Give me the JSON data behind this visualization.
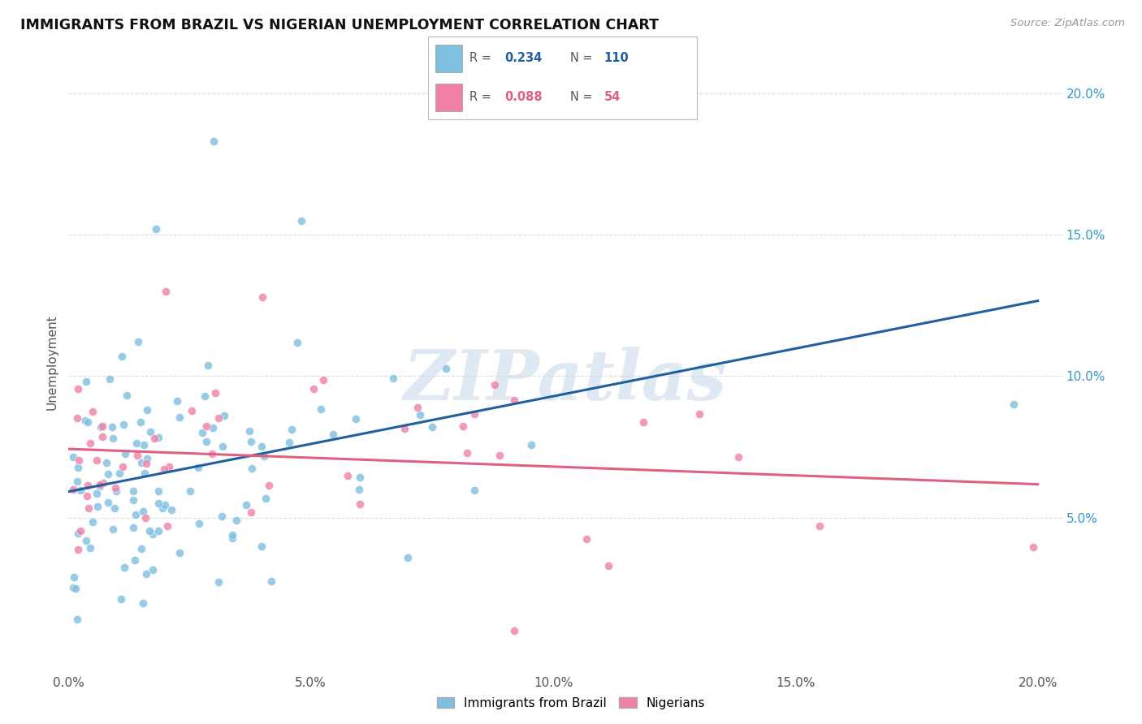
{
  "title": "IMMIGRANTS FROM BRAZIL VS NIGERIAN UNEMPLOYMENT CORRELATION CHART",
  "source": "Source: ZipAtlas.com",
  "ylabel": "Unemployment",
  "legend_label_blue": "Immigrants from Brazil",
  "legend_label_pink": "Nigerians",
  "watermark_text": "ZIPatlas",
  "blue_color": "#7fbfdf",
  "pink_color": "#f080a8",
  "blue_line_color": "#2060a0",
  "pink_line_color": "#e06080",
  "xlim": [
    0.0,
    0.205
  ],
  "ylim": [
    -0.005,
    0.215
  ],
  "ytick_vals": [
    0.05,
    0.1,
    0.15,
    0.2
  ],
  "xtick_vals": [
    0.0,
    0.05,
    0.1,
    0.15,
    0.2
  ],
  "background_color": "#ffffff",
  "grid_color": "#dddddd",
  "blue_r": 0.234,
  "pink_r": 0.088,
  "blue_n": 110,
  "pink_n": 54,
  "r_label_blue": "0.234",
  "r_label_pink": "0.088",
  "n_label_blue": "110",
  "n_label_pink": "54"
}
